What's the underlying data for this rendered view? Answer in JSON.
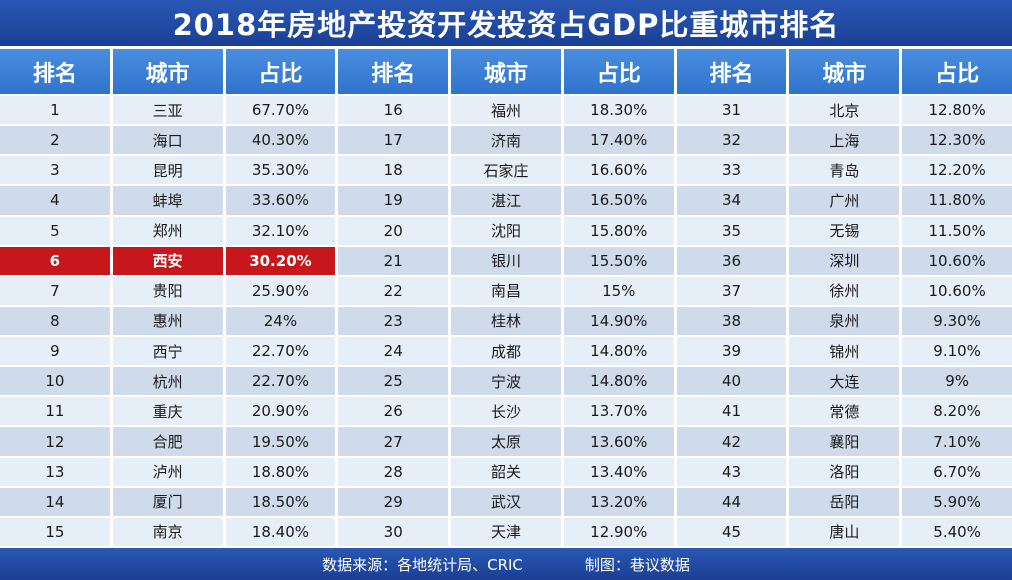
{
  "title": "2018年房地产投资开发投资占GDP比重城市排名",
  "headers": [
    "排名",
    "城市",
    "占比",
    "排名",
    "城市",
    "占比",
    "排名",
    "城市",
    "占比"
  ],
  "footer": {
    "source": "数据来源：各地统计局、CRIC",
    "credit": "制图：巷议数据"
  },
  "highlight_rank": 6,
  "colors": {
    "title_bar": "#1f4aa6",
    "header": "#3a7fd6",
    "row_light": "#e6eef7",
    "row_dark": "#cfdbea",
    "highlight": "#c8161d"
  },
  "chart_data": {
    "type": "table",
    "title": "2018年房地产投资开发投资占GDP比重城市排名",
    "columns": [
      "排名",
      "城市",
      "占比"
    ],
    "rows": [
      {
        "rank": "1",
        "city": "三亚",
        "share": "67.70%"
      },
      {
        "rank": "2",
        "city": "海口",
        "share": "40.30%"
      },
      {
        "rank": "3",
        "city": "昆明",
        "share": "35.30%"
      },
      {
        "rank": "4",
        "city": "蚌埠",
        "share": "33.60%"
      },
      {
        "rank": "5",
        "city": "郑州",
        "share": "32.10%"
      },
      {
        "rank": "6",
        "city": "西安",
        "share": "30.20%"
      },
      {
        "rank": "7",
        "city": "贵阳",
        "share": "25.90%"
      },
      {
        "rank": "8",
        "city": "惠州",
        "share": "24%"
      },
      {
        "rank": "9",
        "city": "西宁",
        "share": "22.70%"
      },
      {
        "rank": "10",
        "city": "杭州",
        "share": "22.70%"
      },
      {
        "rank": "11",
        "city": "重庆",
        "share": "20.90%"
      },
      {
        "rank": "12",
        "city": "合肥",
        "share": "19.50%"
      },
      {
        "rank": "13",
        "city": "泸州",
        "share": "18.80%"
      },
      {
        "rank": "14",
        "city": "厦门",
        "share": "18.50%"
      },
      {
        "rank": "15",
        "city": "南京",
        "share": "18.40%"
      },
      {
        "rank": "16",
        "city": "福州",
        "share": "18.30%"
      },
      {
        "rank": "17",
        "city": "济南",
        "share": "17.40%"
      },
      {
        "rank": "18",
        "city": "石家庄",
        "share": "16.60%"
      },
      {
        "rank": "19",
        "city": "湛江",
        "share": "16.50%"
      },
      {
        "rank": "20",
        "city": "沈阳",
        "share": "15.80%"
      },
      {
        "rank": "21",
        "city": "银川",
        "share": "15.50%"
      },
      {
        "rank": "22",
        "city": "南昌",
        "share": "15%"
      },
      {
        "rank": "23",
        "city": "桂林",
        "share": "14.90%"
      },
      {
        "rank": "24",
        "city": "成都",
        "share": "14.80%"
      },
      {
        "rank": "25",
        "city": "宁波",
        "share": "14.80%"
      },
      {
        "rank": "26",
        "city": "长沙",
        "share": "13.70%"
      },
      {
        "rank": "27",
        "city": "太原",
        "share": "13.60%"
      },
      {
        "rank": "28",
        "city": "韶关",
        "share": "13.40%"
      },
      {
        "rank": "29",
        "city": "武汉",
        "share": "13.20%"
      },
      {
        "rank": "30",
        "city": "天津",
        "share": "12.90%"
      },
      {
        "rank": "31",
        "city": "北京",
        "share": "12.80%"
      },
      {
        "rank": "32",
        "city": "上海",
        "share": "12.30%"
      },
      {
        "rank": "33",
        "city": "青岛",
        "share": "12.20%"
      },
      {
        "rank": "34",
        "city": "广州",
        "share": "11.80%"
      },
      {
        "rank": "35",
        "city": "无锡",
        "share": "11.50%"
      },
      {
        "rank": "36",
        "city": "深圳",
        "share": "10.60%"
      },
      {
        "rank": "37",
        "city": "徐州",
        "share": "10.60%"
      },
      {
        "rank": "38",
        "city": "泉州",
        "share": "9.30%"
      },
      {
        "rank": "39",
        "city": "锦州",
        "share": "9.10%"
      },
      {
        "rank": "40",
        "city": "大连",
        "share": "9%"
      },
      {
        "rank": "41",
        "city": "常德",
        "share": "8.20%"
      },
      {
        "rank": "42",
        "city": "襄阳",
        "share": "7.10%"
      },
      {
        "rank": "43",
        "city": "洛阳",
        "share": "6.70%"
      },
      {
        "rank": "44",
        "city": "岳阳",
        "share": "5.90%"
      },
      {
        "rank": "45",
        "city": "唐山",
        "share": "5.40%"
      }
    ]
  }
}
